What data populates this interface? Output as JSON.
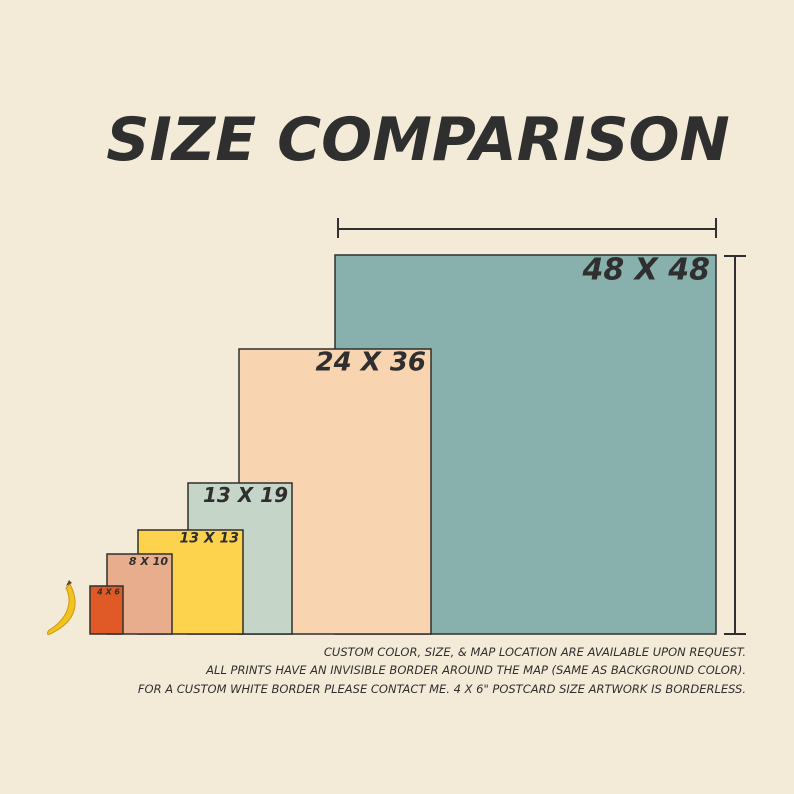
{
  "title": "SIZE COMPARISON",
  "sizes": [
    "48 X 48",
    "24 X 36",
    "13 X 19",
    "13 X 13",
    "8 X 10",
    "4 X 6"
  ],
  "notes": [
    "CUSTOM COLOR, SIZE, & MAP LOCATION ARE AVAILABLE UPON REQUEST.",
    "ALL PRINTS HAVE AN INVISIBLE BORDER AROUND THE MAP (SAME AS BACKGROUND COLOR).",
    "FOR A CUSTOM WHITE BORDER PLEASE CONTACT ME. 4 X 6\" POSTCARD SIZE ARTWORK IS BORDERLESS."
  ]
}
